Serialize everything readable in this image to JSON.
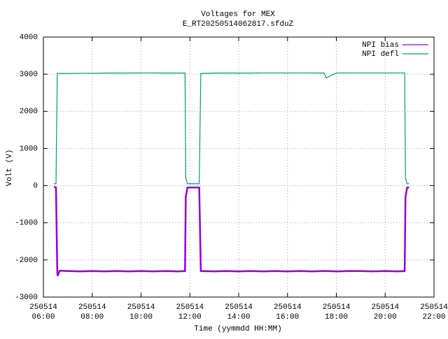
{
  "chart_data": {
    "type": "line",
    "title": "Voltages for MEX",
    "subtitle": "E_RT20250514062817.sfduZ",
    "x_label": "Time (yymmdd HH:MM)",
    "y_label": "Volt (V)",
    "x": [
      "250514 06:26",
      "250514 06:31",
      "250514 06:34",
      "250514 06:35",
      "250514 06:40",
      "250514 07:00",
      "250514 07:30",
      "250514 08:00",
      "250514 08:30",
      "250514 09:00",
      "250514 09:30",
      "250514 10:00",
      "250514 10:30",
      "250514 11:00",
      "250514 11:30",
      "250514 11:48",
      "250514 11:50",
      "250514 11:54",
      "250514 12:00",
      "250514 12:20",
      "250514 12:23",
      "250514 12:27",
      "250514 13:00",
      "250514 13:30",
      "250514 14:00",
      "250514 14:30",
      "250514 15:00",
      "250514 15:30",
      "250514 16:00",
      "250514 16:30",
      "250514 17:00",
      "250514 17:30",
      "250514 17:35",
      "250514 18:00",
      "250514 18:30",
      "250514 19:00",
      "250514 19:30",
      "250514 20:00",
      "250514 20:30",
      "250514 20:48",
      "250514 20:50",
      "250514 20:54",
      "250514 20:59"
    ],
    "series": [
      {
        "name": "NPI bias",
        "color": "#9400d3",
        "values": [
          -30,
          -50,
          -2300,
          -2430,
          -2290,
          -2300,
          -2310,
          -2300,
          -2310,
          -2300,
          -2310,
          -2300,
          -2310,
          -2300,
          -2310,
          -2300,
          -300,
          -50,
          -50,
          -50,
          -50,
          -2300,
          -2310,
          -2300,
          -2310,
          -2300,
          -2310,
          -2300,
          -2310,
          -2300,
          -2310,
          -2300,
          -2300,
          -2310,
          -2300,
          -2300,
          -2310,
          -2300,
          -2310,
          -2300,
          -300,
          -50,
          -50
        ]
      },
      {
        "name": "NPI defl",
        "color": "#009e73",
        "values": [
          50,
          50,
          3010,
          3020,
          3020,
          3020,
          3025,
          3025,
          3030,
          3030,
          3030,
          3035,
          3035,
          3030,
          3030,
          3030,
          200,
          50,
          50,
          50,
          50,
          3020,
          3030,
          3030,
          3030,
          3030,
          3035,
          3035,
          3035,
          3035,
          3035,
          3030,
          2900,
          3035,
          3035,
          3035,
          3035,
          3035,
          3035,
          3035,
          200,
          50,
          50
        ]
      }
    ],
    "xlim": [
      "250514 06:00",
      "250514 22:00"
    ],
    "xticks": [
      "250514 06:00",
      "250514 08:00",
      "250514 10:00",
      "250514 12:00",
      "250514 14:00",
      "250514 16:00",
      "250514 18:00",
      "250514 20:00",
      "250514 22:00"
    ],
    "ylim": [
      -3000,
      4000
    ],
    "yticks": [
      -3000,
      -2000,
      -1000,
      0,
      1000,
      2000,
      3000,
      4000
    ],
    "grid": true,
    "legend": "top-right"
  }
}
